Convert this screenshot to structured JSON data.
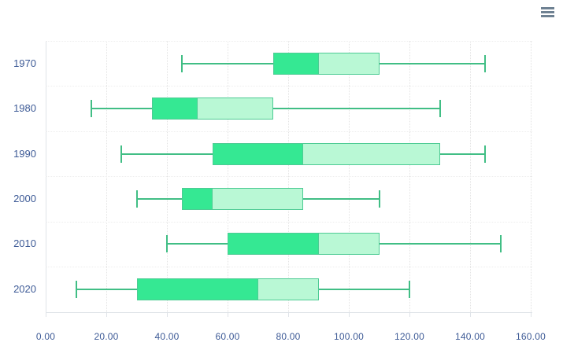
{
  "toolbar": {
    "menu_icon": "hamburger-menu"
  },
  "chart_data": {
    "type": "boxplot",
    "orientation": "horizontal",
    "title": "",
    "xlabel": "",
    "ylabel": "",
    "xlim": [
      0,
      160
    ],
    "x_tick_step": 20,
    "x_tick_labels": [
      "0.00",
      "20.00",
      "40.00",
      "60.00",
      "80.00",
      "100.00",
      "120.00",
      "140.00",
      "160.00"
    ],
    "categories": [
      "1970",
      "1980",
      "1990",
      "2000",
      "2010",
      "2020"
    ],
    "series": [
      {
        "name": "box",
        "data": [
          {
            "category": "1970",
            "min": 45,
            "q1": 75,
            "median": 90,
            "q3": 110,
            "max": 145
          },
          {
            "category": "1980",
            "min": 15,
            "q1": 35,
            "median": 50,
            "q3": 75,
            "max": 130
          },
          {
            "category": "1990",
            "min": 25,
            "q1": 55,
            "median": 85,
            "q3": 130,
            "max": 145
          },
          {
            "category": "2000",
            "min": 30,
            "q1": 45,
            "median": 55,
            "q3": 85,
            "max": 110
          },
          {
            "category": "2010",
            "min": 40,
            "q1": 60,
            "median": 90,
            "q3": 110,
            "max": 150
          },
          {
            "category": "2020",
            "min": 10,
            "q1": 30,
            "median": 70,
            "q3": 90,
            "max": 120
          }
        ]
      }
    ],
    "legend": "none",
    "grid": "vertical-dotted",
    "colors": {
      "lower_box_fill": "#35e893",
      "upper_box_fill": "#b9f8d5",
      "box_border": "#4ecb94",
      "whisker": "#41be85",
      "axis_label": "#3d5a96",
      "grid_line": "#e3e3e3",
      "axis_line": "#dfe3e8",
      "toolbar_icon": "#6e8192",
      "background": "#ffffff"
    }
  }
}
